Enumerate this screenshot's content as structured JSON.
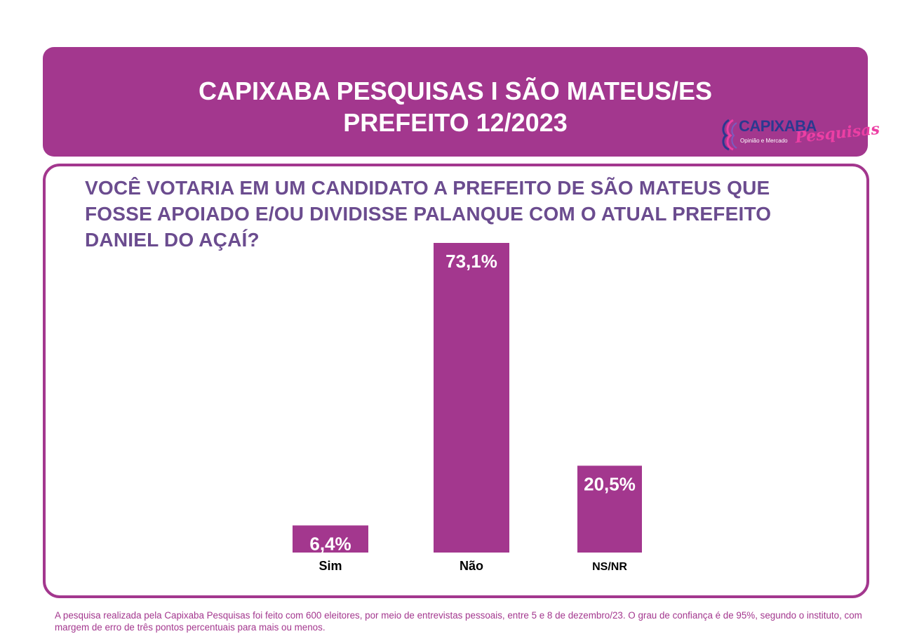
{
  "header": {
    "title_line1": "CAPIXABA PESQUISAS I SÃO MATEUS/ES",
    "title_line2": "PREFEITO 12/2023"
  },
  "logo": {
    "name": "CAPIXABA",
    "script": "Pesquisas",
    "tagline": "Opinião e Mercado"
  },
  "colors": {
    "brand": "#a3378e",
    "question_text": "#6b4c8f",
    "bar": "#a3378e",
    "logo_blue": "#2b3990",
    "logo_pink": "#ec3fa4"
  },
  "chart_data": {
    "type": "bar",
    "title": "VOCÊ VOTARIA EM UM CANDIDATO A PREFEITO DE SÃO MATEUS QUE FOSSE APOIADO E/OU DIVIDISSE PALANQUE COM O ATUAL PREFEITO DANIEL DO AÇAÍ?",
    "categories": [
      "Sim",
      "Não",
      "NS/NR"
    ],
    "values": [
      6.4,
      73.1,
      20.5
    ],
    "labels": [
      "6,4%",
      "73,1%",
      "20,5%"
    ],
    "ylim": [
      0,
      73.1
    ],
    "grid": false,
    "legend": "none"
  },
  "footer": {
    "note": "A pesquisa realizada pela Capixaba Pesquisas foi feito com 600 eleitores, por meio de entrevistas pessoais, entre 5 e 8 de dezembro/23. O grau de confiança é de 95%, segundo o instituto, com margem de erro de três pontos percentuais para mais ou menos."
  }
}
